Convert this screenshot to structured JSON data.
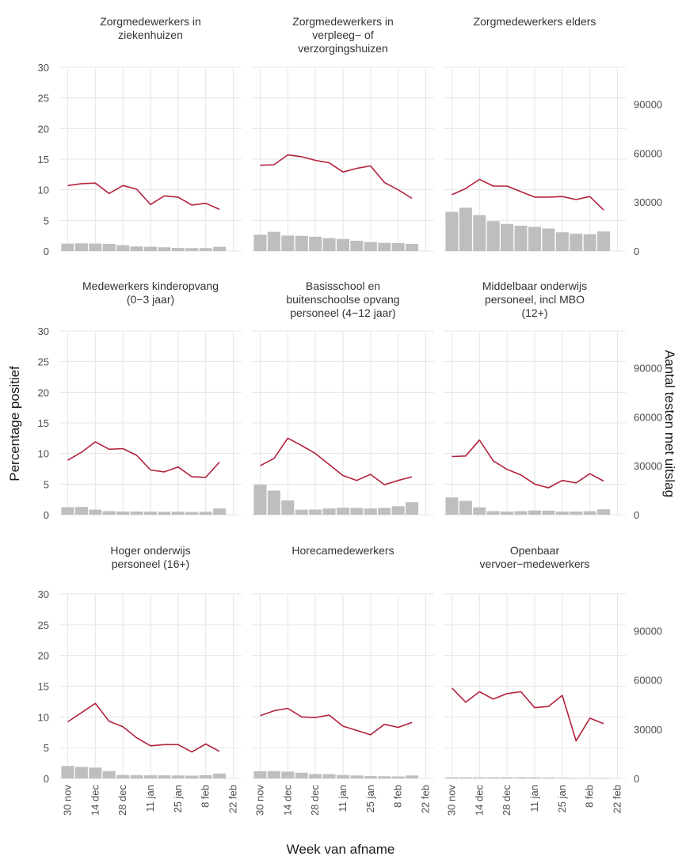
{
  "chart_data": {
    "type": "bar+line",
    "xlabel": "Week van afname",
    "ylabel_left": "Percentage positief",
    "ylabel_right": "Aantal testen met uitslag",
    "y_left_ticks": [
      "0",
      "5",
      "10",
      "15",
      "20",
      "25",
      "30"
    ],
    "y_left_range": [
      0,
      30
    ],
    "y_right_ticks": [
      "0",
      "30000",
      "60000",
      "90000"
    ],
    "y_right_range": [
      0,
      112500
    ],
    "x_tick_labels": [
      "30 nov",
      "14 dec",
      "28 dec",
      "11 jan",
      "25 jan",
      "8 feb",
      "22 feb"
    ],
    "weeks": [
      "30 nov",
      "7 dec",
      "14 dec",
      "21 dec",
      "28 dec",
      "4 jan",
      "11 jan",
      "18 jan",
      "25 jan",
      "1 feb",
      "8 feb",
      "15 feb"
    ],
    "colors": {
      "line": "#b2223c",
      "bar": "#bebebe",
      "grid": "#e6e6e6"
    },
    "panels": [
      {
        "title": [
          "Zorgmedewerkers in",
          "ziekenhuizen"
        ],
        "percent": [
          10.7,
          11.0,
          11.1,
          9.4,
          10.7,
          10.1,
          7.6,
          9.0,
          8.8,
          7.5,
          7.8,
          6.8
        ],
        "tests": [
          4500,
          4700,
          4600,
          4400,
          3600,
          2800,
          2600,
          2300,
          1900,
          1800,
          1800,
          2600
        ]
      },
      {
        "title": [
          "Zorgmedewerkers in",
          "verpleeg− of",
          "verzorgingshuizen"
        ],
        "percent": [
          14.0,
          14.1,
          15.7,
          15.4,
          14.8,
          14.4,
          12.9,
          13.5,
          13.9,
          11.2,
          10.0,
          8.6
        ],
        "tests": [
          10000,
          11800,
          9500,
          9300,
          8800,
          7900,
          7400,
          6300,
          5500,
          5000,
          4900,
          4400
        ]
      },
      {
        "title": [
          "Zorgmedewerkers elders"
        ],
        "percent": [
          9.2,
          10.2,
          11.7,
          10.6,
          10.6,
          9.7,
          8.8,
          8.8,
          8.9,
          8.4,
          8.9,
          6.7
        ],
        "tests": [
          24000,
          26500,
          22000,
          18300,
          16600,
          15500,
          14800,
          13800,
          11500,
          10600,
          10300,
          12000
        ]
      },
      {
        "title": [
          "Medewerkers kinderopvang",
          "(0−3 jaar)"
        ],
        "percent": [
          8.9,
          10.2,
          11.9,
          10.7,
          10.8,
          9.7,
          7.3,
          7.0,
          7.8,
          6.2,
          6.1,
          8.6
        ],
        "tests": [
          4600,
          4800,
          3100,
          2200,
          2000,
          2000,
          1900,
          1800,
          1900,
          1700,
          1800,
          3800
        ]
      },
      {
        "title": [
          "Basisschool en",
          "buitenschoolse opvang",
          "personeel (4−12 jaar)"
        ],
        "percent": [
          8.0,
          9.2,
          12.5,
          11.3,
          10.0,
          8.2,
          6.4,
          5.6,
          6.6,
          4.9,
          5.6,
          6.2
        ],
        "tests": [
          18400,
          14800,
          8800,
          3100,
          3200,
          3800,
          4300,
          4200,
          3800,
          4200,
          5200,
          7700
        ]
      },
      {
        "title": [
          "Middelbaar onderwijs",
          "personeel, incl MBO",
          "(12+)"
        ],
        "percent": [
          9.5,
          9.6,
          12.2,
          8.8,
          7.4,
          6.5,
          5.0,
          4.4,
          5.6,
          5.2,
          6.7,
          5.5
        ],
        "tests": [
          10600,
          8500,
          4500,
          2200,
          2000,
          2200,
          2600,
          2500,
          2000,
          2000,
          2200,
          3300
        ]
      },
      {
        "title": [
          "Hoger onderwijs",
          "personeel (16+)"
        ],
        "percent": [
          9.2,
          10.7,
          12.2,
          9.3,
          8.4,
          6.6,
          5.3,
          5.5,
          5.5,
          4.3,
          5.6,
          4.4
        ],
        "tests": [
          7600,
          7000,
          6600,
          4500,
          2100,
          2000,
          1900,
          1900,
          1800,
          1700,
          2000,
          3000
        ]
      },
      {
        "title": [
          "Horecamedewerkers"
        ],
        "percent": [
          10.2,
          11.0,
          11.4,
          10.0,
          9.9,
          10.3,
          8.5,
          7.8,
          7.1,
          8.8,
          8.3,
          9.1
        ],
        "tests": [
          4400,
          4500,
          4200,
          3500,
          2700,
          2600,
          2100,
          1800,
          1400,
          1300,
          1200,
          1800
        ]
      },
      {
        "title": [
          "Openbaar",
          "vervoer−medewerkers"
        ],
        "percent": [
          14.7,
          12.4,
          14.1,
          12.9,
          13.8,
          14.1,
          11.5,
          11.7,
          13.5,
          6.1,
          9.8,
          8.9
        ],
        "tests": [
          700,
          700,
          700,
          700,
          700,
          700,
          700,
          600,
          400,
          300,
          300,
          300
        ]
      }
    ]
  }
}
